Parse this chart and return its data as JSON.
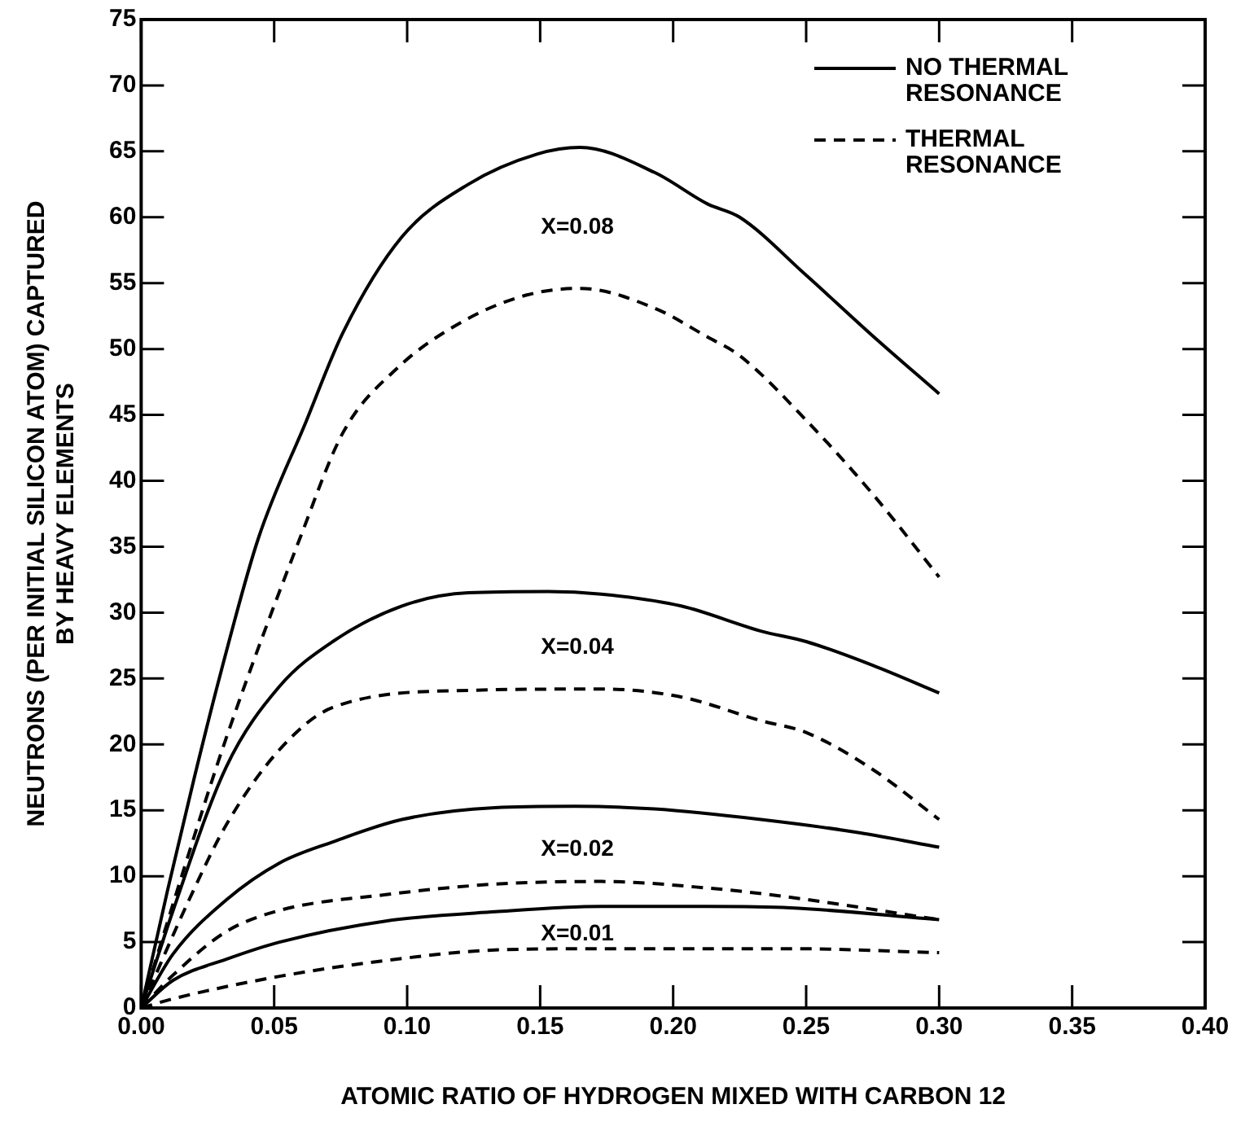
{
  "chart_data": {
    "type": "line",
    "xlabel": "ATOMIC RATIO OF HYDROGEN MIXED WITH CARBON 12",
    "ylabel": "NEUTRONS (PER INITIAL SILICON ATOM) CAPTURED\nBY HEAVY ELEMENTS",
    "xlim": [
      0,
      0.4
    ],
    "ylim": [
      0,
      75
    ],
    "xticks": [
      {
        "value": 0,
        "label": "0.00"
      },
      {
        "value": 0.05,
        "label": "0.05"
      },
      {
        "value": 0.1,
        "label": "0.10"
      },
      {
        "value": 0.15,
        "label": "0.15"
      },
      {
        "value": 0.2,
        "label": "0.20"
      },
      {
        "value": 0.25,
        "label": "0.25"
      },
      {
        "value": 0.3,
        "label": "0.30"
      },
      {
        "value": 0.35,
        "label": "0.35"
      },
      {
        "value": 0.4,
        "label": "0.40"
      }
    ],
    "yticks": [
      0,
      5,
      10,
      15,
      20,
      25,
      30,
      35,
      40,
      45,
      50,
      55,
      60,
      65,
      70,
      75
    ],
    "grid": false,
    "legend": "top right",
    "marker": "none",
    "series": [
      {
        "name": "NO THERMAL RESONANCE",
        "color": "#000000",
        "line_style": "solid",
        "x": [
          0,
          0.01,
          0.02,
          0.03,
          0.044,
          0.062,
          0.076,
          0.098,
          0.123,
          0.149,
          0.165,
          0.193,
          0.213,
          0.225,
          0.25,
          0.275,
          0.3
        ],
        "values": [
          0,
          9,
          17.5,
          25.5,
          35.6,
          44.5,
          51.3,
          58.5,
          62.5,
          64.8,
          65.3,
          63.4,
          61,
          60,
          55.6,
          51,
          46.6
        ]
      },
      {
        "name": "THERMAL RESONANCE",
        "color": "#000000",
        "line_style": "dashed",
        "x": [
          0,
          0.016,
          0.032,
          0.06,
          0.076,
          0.096,
          0.121,
          0.145,
          0.165,
          0.193,
          0.213,
          0.225,
          0.25,
          0.275,
          0.3
        ],
        "values": [
          0,
          10.5,
          20.5,
          35.8,
          43.7,
          48.5,
          52.1,
          54.1,
          54.6,
          53.1,
          50.9,
          49.5,
          44.6,
          39,
          32.7
        ]
      },
      {
        "color": "#000000",
        "line_style": "solid",
        "x": [
          0,
          0.012,
          0.032,
          0.052,
          0.072,
          0.098,
          0.123,
          0.153,
          0.173,
          0.203,
          0.233,
          0.25,
          0.275,
          0.3
        ],
        "values": [
          0,
          7.4,
          18.3,
          24.4,
          27.8,
          30.5,
          31.5,
          31.6,
          31.4,
          30.5,
          28.6,
          27.8,
          26,
          23.9
        ]
      },
      {
        "color": "#000000",
        "line_style": "dashed",
        "x": [
          0,
          0.018,
          0.032,
          0.052,
          0.072,
          0.123,
          0.173,
          0.203,
          0.233,
          0.25,
          0.275,
          0.3
        ],
        "values": [
          0,
          8.2,
          13.9,
          19.6,
          22.8,
          24.1,
          24.2,
          23.6,
          21.8,
          20.9,
          18.1,
          14.3
        ]
      },
      {
        "color": "#000000",
        "line_style": "solid",
        "x": [
          0,
          0.012,
          0.032,
          0.052,
          0.072,
          0.098,
          0.133,
          0.163,
          0.193,
          0.233,
          0.27,
          0.3
        ],
        "values": [
          0,
          4.1,
          8.2,
          11,
          12.6,
          14.3,
          15.2,
          15.3,
          15.1,
          14.3,
          13.3,
          12.2
        ]
      },
      {
        "color": "#000000",
        "line_style": "dashed",
        "x": [
          0,
          0.012,
          0.032,
          0.052,
          0.092,
          0.133,
          0.173,
          0.213,
          0.244,
          0.3
        ],
        "values": [
          0,
          2.5,
          5.8,
          7.4,
          8.6,
          9.4,
          9.6,
          9.1,
          8.4,
          6.7
        ]
      },
      {
        "color": "#000000",
        "line_style": "solid",
        "x": [
          0,
          0.012,
          0.032,
          0.052,
          0.092,
          0.133,
          0.173,
          0.213,
          0.244,
          0.3
        ],
        "values": [
          0,
          2.1,
          3.7,
          5,
          6.6,
          7.3,
          7.7,
          7.7,
          7.6,
          6.7
        ]
      },
      {
        "color": "#000000",
        "line_style": "dashed",
        "x": [
          0,
          0.012,
          0.052,
          0.092,
          0.133,
          0.173,
          0.244,
          0.3
        ],
        "values": [
          0,
          0.7,
          2.4,
          3.6,
          4.4,
          4.5,
          4.5,
          4.2
        ]
      }
    ],
    "annotations": [
      "X=0.08",
      "X=0.04",
      "X=0.02",
      "X=0.01"
    ]
  }
}
